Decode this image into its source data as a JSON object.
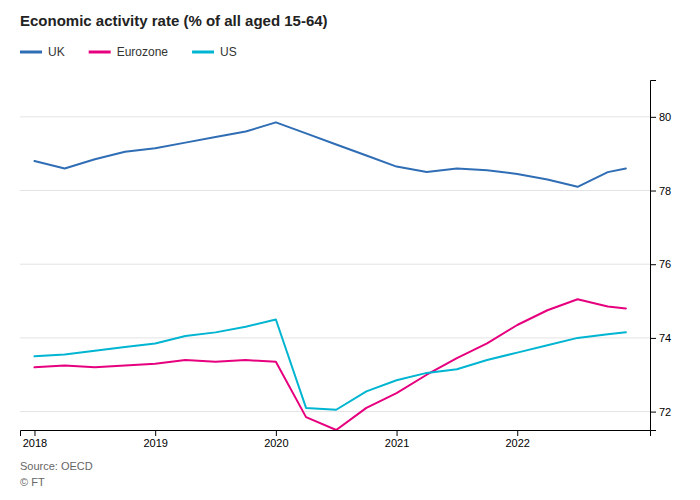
{
  "chart_data": {
    "type": "line",
    "title": "Economic activity rate (% of all aged 15-64)",
    "annotations": [
      "Source: OECD",
      "© FT"
    ],
    "x": [
      2018.0,
      2018.25,
      2018.5,
      2018.75,
      2019.0,
      2019.25,
      2019.5,
      2019.75,
      2020.0,
      2020.25,
      2020.5,
      2020.75,
      2021.0,
      2021.25,
      2021.5,
      2021.75,
      2022.0,
      2022.25,
      2022.5,
      2022.75,
      2022.9
    ],
    "series": [
      {
        "name": "UK",
        "color": "#2f6db5",
        "values": [
          78.8,
          78.6,
          78.85,
          79.05,
          79.15,
          79.3,
          79.45,
          79.6,
          79.85,
          79.55,
          79.25,
          78.95,
          78.65,
          78.5,
          78.6,
          78.55,
          78.45,
          78.3,
          78.1,
          78.5,
          78.6
        ]
      },
      {
        "name": "Eurozone",
        "color": "#e6007e",
        "values": [
          73.2,
          73.25,
          73.2,
          73.25,
          73.3,
          73.4,
          73.35,
          73.4,
          73.35,
          71.85,
          71.5,
          72.1,
          72.5,
          73.0,
          73.45,
          73.85,
          74.35,
          74.75,
          75.05,
          74.85,
          74.8
        ]
      },
      {
        "name": "US",
        "color": "#00b5d1",
        "values": [
          73.5,
          73.55,
          73.65,
          73.75,
          73.85,
          74.05,
          74.15,
          74.3,
          74.5,
          72.1,
          72.05,
          72.55,
          72.85,
          73.05,
          73.15,
          73.4,
          73.6,
          73.8,
          74.0,
          74.1,
          74.15
        ]
      }
    ],
    "xlim": [
      2017.88,
      2023.1
    ],
    "xticks": [
      2018,
      2019,
      2020,
      2021,
      2022
    ],
    "ylim": [
      71.5,
      81.0
    ],
    "yticks": [
      72,
      74,
      76,
      78,
      80
    ],
    "grid": true,
    "legend": "top-left"
  }
}
